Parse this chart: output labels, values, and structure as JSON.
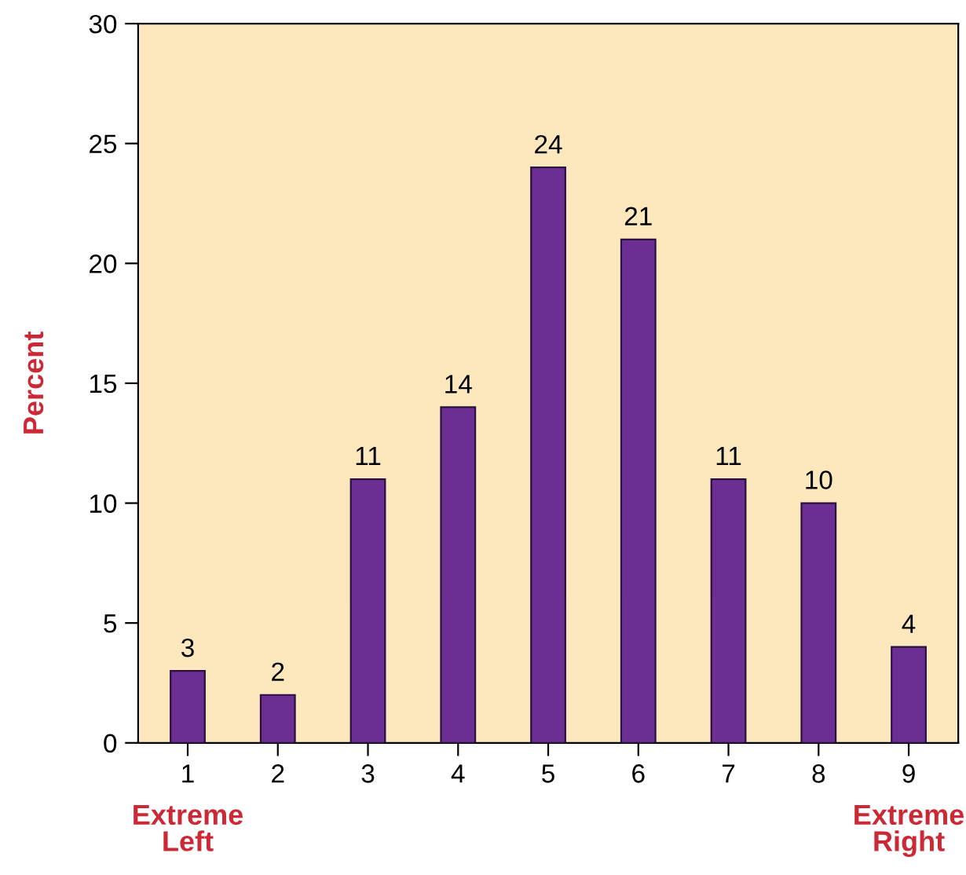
{
  "chart_data": {
    "type": "bar",
    "ylabel": "Percent",
    "categories": [
      "1",
      "2",
      "3",
      "4",
      "5",
      "6",
      "7",
      "8",
      "9"
    ],
    "values": [
      3,
      2,
      11,
      14,
      24,
      21,
      11,
      10,
      4
    ],
    "color": "#6b2f93",
    "ylim": [
      0,
      30
    ],
    "yticks": [
      0,
      5,
      10,
      15,
      20,
      25,
      30
    ],
    "data_labels": true,
    "grid": false,
    "annotations": [
      "Extreme\nLeft",
      "Extreme\nRight"
    ]
  }
}
